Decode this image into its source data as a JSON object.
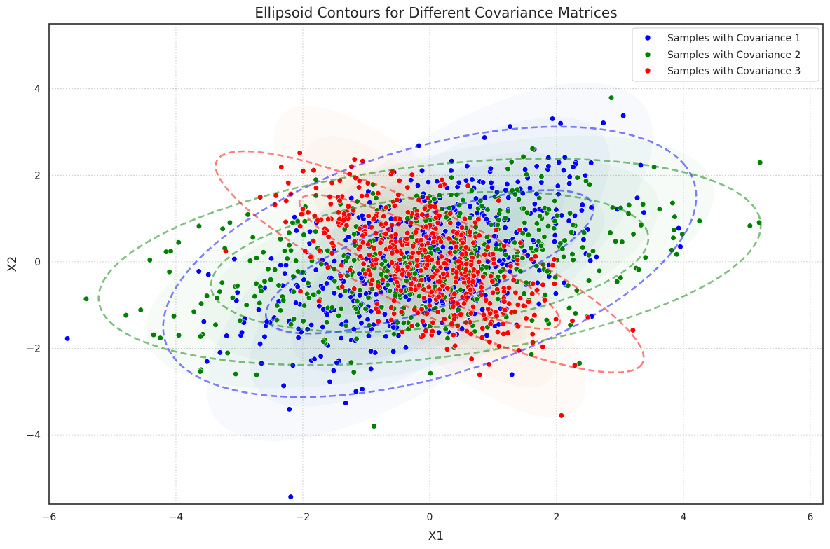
{
  "chart_data": {
    "type": "scatter",
    "title": "Ellipsoid Contours for Different Covariance Matrices",
    "xlabel": "X1",
    "ylabel": "X2",
    "xlim": [
      -6,
      6.2
    ],
    "ylim": [
      -5.6,
      5.5
    ],
    "x_ticks": [
      -6,
      -4,
      -2,
      0,
      2,
      4,
      6
    ],
    "y_ticks": [
      -4,
      -2,
      0,
      2,
      4
    ],
    "x_tick_labels": [
      "−6",
      "−4",
      "−2",
      "0",
      "2",
      "4",
      "6"
    ],
    "y_tick_labels": [
      "−4",
      "−2",
      "0",
      "2",
      "4"
    ],
    "grid": true,
    "legend_position": "top-right",
    "series": [
      {
        "name": "Samples with Covariance 1",
        "color": "#0000ff",
        "mean": [
          0,
          0
        ],
        "covariance": [
          [
            2.0,
            0.8
          ],
          [
            0.8,
            1.5
          ]
        ],
        "n_points": 500,
        "ellipses": [
          {
            "center": [
              0,
              0
            ],
            "semi_major": 2.9,
            "semi_minor": 1.0,
            "angle_deg": 29
          },
          {
            "center": [
              0,
              0
            ],
            "semi_major": 4.6,
            "semi_minor": 2.5,
            "angle_deg": 29
          }
        ]
      },
      {
        "name": "Samples with Covariance 2",
        "color": "#008000",
        "mean": [
          0,
          0
        ],
        "covariance": [
          [
            3.0,
            0.6
          ],
          [
            0.6,
            1.0
          ]
        ],
        "n_points": 500,
        "ellipses": [
          {
            "center": [
              0,
              0
            ],
            "semi_major": 3.5,
            "semi_minor": 1.5,
            "angle_deg": 11
          },
          {
            "center": [
              0,
              0
            ],
            "semi_major": 5.3,
            "semi_minor": 2.2,
            "angle_deg": 11
          }
        ]
      },
      {
        "name": "Samples with Covariance 3",
        "color": "#ff0000",
        "mean": [
          0,
          0
        ],
        "covariance": [
          [
            1.0,
            -0.6
          ],
          [
            -0.6,
            1.0
          ]
        ],
        "n_points": 500,
        "ellipses": [
          {
            "center": [
              0,
              0
            ],
            "semi_major": 2.5,
            "semi_minor": 0.6,
            "angle_deg": -36
          },
          {
            "center": [
              0,
              0
            ],
            "semi_major": 4.1,
            "semi_minor": 1.05,
            "angle_deg": -36
          }
        ]
      }
    ]
  },
  "kde_colors": [
    "#4a7cc9",
    "#2e9b4e",
    "#f2854a"
  ]
}
